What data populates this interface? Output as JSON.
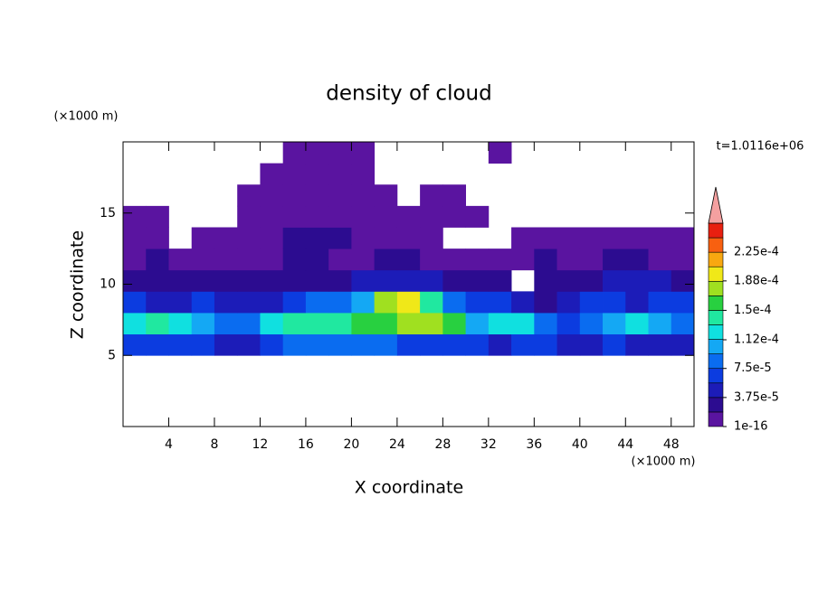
{
  "chart_data": {
    "type": "contour",
    "title": "density of cloud",
    "x_label": "X coordinate",
    "y_label": "Z coordinate",
    "x_unit": "(×1000 m)",
    "y_unit": "(×1000 m)",
    "time_label": "t=1.0116e+06",
    "xlim": [
      0,
      50
    ],
    "ylim": [
      0,
      20
    ],
    "xticks": [
      4,
      8,
      12,
      16,
      20,
      24,
      28,
      32,
      36,
      40,
      44,
      48
    ],
    "yticks": [
      5,
      10,
      15
    ],
    "x": [
      1,
      3,
      5,
      7,
      9,
      11,
      13,
      15,
      17,
      19,
      21,
      23,
      25,
      27,
      29,
      31,
      33,
      35,
      37,
      39,
      41,
      43,
      45,
      47,
      49
    ],
    "z": [
      5.75,
      7.25,
      8.75,
      10.25,
      11.75,
      13.25,
      14.75,
      16.25,
      17.75,
      19.25
    ],
    "values": [
      [
        6e-05,
        7e-05,
        7e-05,
        6e-05,
        5e-05,
        4e-05,
        7e-05,
        8e-05,
        8e-05,
        8e-05,
        8e-05,
        8e-05,
        7e-05,
        7e-05,
        6e-05,
        6e-05,
        5e-05,
        6e-05,
        6e-05,
        5e-05,
        5e-05,
        6e-05,
        5e-05,
        5e-05,
        4e-05
      ],
      [
        0.00013,
        0.000135,
        0.00013,
        0.00011,
        9e-05,
        8e-05,
        0.00012,
        0.00014,
        0.000145,
        0.00014,
        0.00015,
        0.00016,
        0.00017,
        0.000175,
        0.00016,
        0.00011,
        0.00012,
        0.00012,
        9e-05,
        7e-05,
        8e-05,
        0.0001,
        0.00012,
        0.00011,
        8e-05
      ],
      [
        6e-05,
        5e-05,
        5e-05,
        6e-05,
        5e-05,
        5e-05,
        5e-05,
        7e-05,
        8e-05,
        9e-05,
        0.00011,
        0.00017,
        0.00019,
        0.00014,
        9e-05,
        6e-05,
        6e-05,
        5e-05,
        3e-05,
        5e-05,
        6e-05,
        6e-05,
        5e-05,
        6e-05,
        6e-05
      ],
      [
        2.5e-05,
        3e-05,
        2.5e-05,
        3e-05,
        2.5e-05,
        3e-05,
        3e-05,
        3e-05,
        3e-05,
        3e-05,
        4e-05,
        4e-05,
        4e-05,
        4e-05,
        3e-05,
        3e-05,
        2.5e-05,
        null,
        2.5e-05,
        3e-05,
        3e-05,
        4e-05,
        4e-05,
        4e-05,
        3e-05
      ],
      [
        1e-05,
        2e-05,
        1e-05,
        1e-05,
        1e-05,
        1e-05,
        1e-05,
        2e-05,
        2e-05,
        1e-05,
        1e-05,
        2e-05,
        2e-05,
        1e-05,
        1e-05,
        1e-05,
        1e-05,
        1e-05,
        2e-05,
        1e-05,
        1e-05,
        2e-05,
        2e-05,
        1e-05,
        1e-05
      ],
      [
        1e-05,
        1e-05,
        null,
        1e-05,
        1e-05,
        1e-05,
        1e-05,
        2e-05,
        2e-05,
        2e-05,
        1e-05,
        1e-05,
        1e-05,
        1e-05,
        null,
        null,
        null,
        1e-05,
        1e-05,
        1e-05,
        1e-05,
        1e-05,
        1e-05,
        1e-05,
        1e-05
      ],
      [
        1e-05,
        1e-05,
        null,
        null,
        null,
        1e-05,
        1e-05,
        1e-05,
        1e-05,
        1e-05,
        1e-05,
        1e-05,
        1e-05,
        1e-05,
        1e-05,
        1e-05,
        null,
        null,
        null,
        null,
        null,
        null,
        null,
        null,
        null
      ],
      [
        null,
        null,
        null,
        null,
        null,
        1e-05,
        1e-05,
        1e-05,
        1e-05,
        1e-05,
        1e-05,
        1e-05,
        null,
        1e-05,
        1e-05,
        null,
        null,
        null,
        null,
        null,
        null,
        null,
        null,
        null,
        null
      ],
      [
        null,
        null,
        null,
        null,
        null,
        null,
        1e-05,
        1e-05,
        1e-05,
        1e-05,
        1e-05,
        null,
        null,
        null,
        null,
        null,
        null,
        null,
        null,
        null,
        null,
        null,
        null,
        null,
        null
      ],
      [
        null,
        null,
        null,
        null,
        null,
        null,
        null,
        1e-05,
        1e-05,
        1e-05,
        1e-05,
        null,
        null,
        null,
        null,
        null,
        1e-05,
        null,
        null,
        null,
        null,
        null,
        null,
        null,
        null
      ]
    ],
    "colorbar": {
      "levels": [
        1e-16,
        1.875e-05,
        3.75e-05,
        5.625e-05,
        7.5e-05,
        9.375e-05,
        0.0001125,
        0.00013125,
        0.00015,
        0.00016875,
        0.0001875,
        0.00020625,
        0.000225,
        0.00024375,
        0.0002625
      ],
      "colors": [
        "#5a14a0",
        "#2c0c90",
        "#1c1cb8",
        "#0c3ce0",
        "#0a6cf0",
        "#14a8f4",
        "#10e0e0",
        "#20e8a0",
        "#28d040",
        "#a0e020",
        "#f0e818",
        "#f8a810",
        "#f86010",
        "#e82010"
      ],
      "extend_color": "#f4a0a0",
      "ticks": [
        {
          "value": 1e-16,
          "label": "1e-16"
        },
        {
          "value": 3.75e-05,
          "label": "3.75e-5"
        },
        {
          "value": 7.5e-05,
          "label": "7.5e-5"
        },
        {
          "value": 0.000112,
          "label": "1.12e-4"
        },
        {
          "value": 0.00015,
          "label": "1.5e-4"
        },
        {
          "value": 0.000188,
          "label": "1.88e-4"
        },
        {
          "value": 0.000225,
          "label": "2.25e-4"
        }
      ]
    }
  }
}
